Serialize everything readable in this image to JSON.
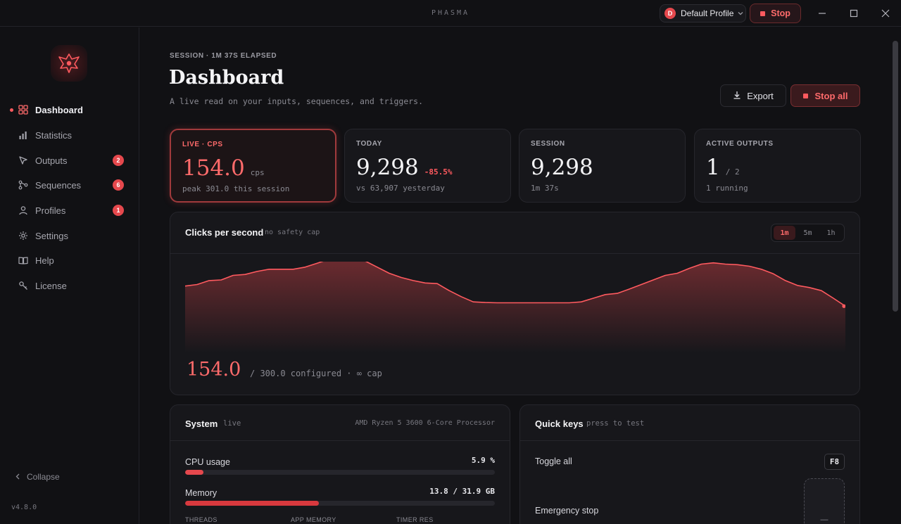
{
  "titlebar": {
    "app_name": "PHASMA",
    "profile_initial": "D",
    "profile_name": "Default Profile",
    "stop_label": "Stop"
  },
  "sidebar": {
    "items": [
      {
        "label": "Dashboard",
        "icon": "grid-icon",
        "active": true,
        "badge": ""
      },
      {
        "label": "Statistics",
        "icon": "bar-chart-icon",
        "badge": ""
      },
      {
        "label": "Outputs",
        "icon": "cursor-icon",
        "badge": "2"
      },
      {
        "label": "Sequences",
        "icon": "branch-icon",
        "badge": "6"
      },
      {
        "label": "Profiles",
        "icon": "user-icon",
        "badge": "1"
      },
      {
        "label": "Settings",
        "icon": "gear-icon",
        "badge": ""
      },
      {
        "label": "Help",
        "icon": "book-icon",
        "badge": ""
      },
      {
        "label": "License",
        "icon": "key-icon",
        "badge": ""
      }
    ],
    "collapse_label": "Collapse",
    "version": "v4.8.0"
  },
  "header": {
    "session_line": "SESSION · 1M 37S ELAPSED",
    "title": "Dashboard",
    "subtitle": "A live read on your inputs, sequences, and triggers.",
    "export_label": "Export",
    "stop_all_label": "Stop all"
  },
  "cards": {
    "live": {
      "label": "LIVE · CPS",
      "value": "154.0",
      "unit": "cps",
      "sub": "peak 301.0 this session"
    },
    "today": {
      "label": "TODAY",
      "value": "9,298",
      "delta": "-85.5%",
      "sub": "vs 63,907 yesterday"
    },
    "session": {
      "label": "SESSION",
      "value": "9,298",
      "sub": "1m 37s"
    },
    "outputs": {
      "label": "ACTIVE OUTPUTS",
      "value": "1",
      "unit": "/ 2",
      "sub": "1 running"
    }
  },
  "chart": {
    "title": "Clicks per second",
    "tag": "no safety cap",
    "ranges": [
      "1m",
      "5m",
      "1h"
    ],
    "active_range": "1m",
    "current": "154.0",
    "configured": "/ 300.0 configured · ∞ cap",
    "accent": "#ff5a5f"
  },
  "chart_data": {
    "type": "area",
    "title": "Clicks per second",
    "xlabel": "",
    "ylabel": "",
    "ylim": [
      0,
      300
    ],
    "grid": false,
    "values": [
      220,
      225,
      238,
      240,
      255,
      258,
      268,
      275,
      275,
      275,
      282,
      295,
      308,
      312,
      305,
      302,
      282,
      262,
      248,
      238,
      230,
      228,
      205,
      185,
      168,
      166,
      165,
      165,
      165,
      165,
      165,
      165,
      165,
      168,
      180,
      192,
      196,
      210,
      225,
      240,
      255,
      262,
      278,
      292,
      296,
      292,
      290,
      285,
      275,
      260,
      238,
      222,
      215,
      205,
      180,
      154
    ]
  },
  "system": {
    "title": "System",
    "tag": "live",
    "cpu_name": "AMD Ryzen 5 3600 6-Core Processor",
    "cpu_label": "CPU usage",
    "cpu_value": "5.9 %",
    "cpu_fraction": 0.059,
    "mem_label": "Memory",
    "mem_value": "13.8 / 31.9 GB",
    "mem_fraction": 0.4326,
    "sub_labels": [
      "THREADS",
      "APP MEMORY",
      "TIMER RES"
    ]
  },
  "quickkeys": {
    "title": "Quick keys",
    "tag": "press to test",
    "toggle_label": "Toggle all",
    "toggle_key": "F8",
    "emergency_label": "Emergency stop",
    "emergency_key": "—"
  }
}
